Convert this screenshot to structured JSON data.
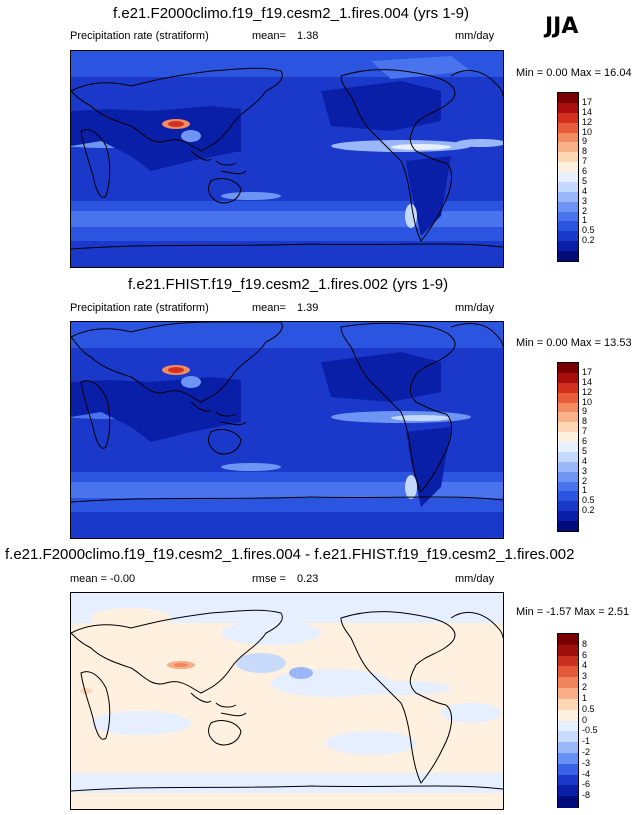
{
  "season": "JJA",
  "colors": {
    "precip_scale": [
      "#000c7a",
      "#0a1fa8",
      "#1a38c9",
      "#2b55e0",
      "#4a74ee",
      "#6e95f4",
      "#9ab8f9",
      "#c5d9fc",
      "#e8f0ff",
      "#fff0e0",
      "#fcd6b5",
      "#f8b28a",
      "#f28a62",
      "#e85e3c",
      "#d0301d",
      "#a80e0c",
      "#7a0000"
    ],
    "diff_scale": [
      "#000c7a",
      "#0a1fa8",
      "#1a38c9",
      "#3a62e6",
      "#6890f2",
      "#9ab8f9",
      "#c8dbfc",
      "#e6efff",
      "#fff0e0",
      "#fcd6b5",
      "#f8ae86",
      "#f0845e",
      "#e25a38",
      "#c8301d",
      "#9e0e0c",
      "#7a0000"
    ]
  },
  "panels": [
    {
      "title": "f.e21.F2000climo.f19_f19.cesm2_1.fires.004 (yrs 1-9)",
      "variable": "Precipitation rate (stratiform)",
      "stat_label": "mean=",
      "stat_value": "1.38",
      "units": "mm/day",
      "minmax": "Min =   0.00 Max =  16.04",
      "levels": [
        "17",
        "14",
        "12",
        "10",
        "9",
        "8",
        "7",
        "6",
        "5",
        "4",
        "3",
        "2",
        "1",
        "0.5",
        "0.2"
      ],
      "kind": "precip"
    },
    {
      "title": "f.e21.FHIST.f19_f19.cesm2_1.fires.002 (yrs 1-9)",
      "variable": "Precipitation rate (stratiform)",
      "stat_label": "mean=",
      "stat_value": "1.39",
      "units": "mm/day",
      "minmax": "Min =   0.00 Max =  13.53",
      "levels": [
        "17",
        "14",
        "12",
        "10",
        "9",
        "8",
        "7",
        "6",
        "5",
        "4",
        "3",
        "2",
        "1",
        "0.5",
        "0.2"
      ],
      "kind": "precip"
    },
    {
      "title": "f.e21.F2000climo.f19_f19.cesm2_1.fires.004 - f.e21.FHIST.f19_f19.cesm2_1.fires.002",
      "variable": "mean =  -0.00",
      "stat_label": "rmse =",
      "stat_value": "0.23",
      "units": "mm/day",
      "minmax": "Min =  -1.57 Max =   2.51",
      "levels": [
        "8",
        "6",
        "4",
        "3",
        "2",
        "1",
        "0.5",
        "0",
        "-0.5",
        "-1",
        "-2",
        "-3",
        "-4",
        "-6",
        "-8"
      ],
      "kind": "diff"
    }
  ]
}
